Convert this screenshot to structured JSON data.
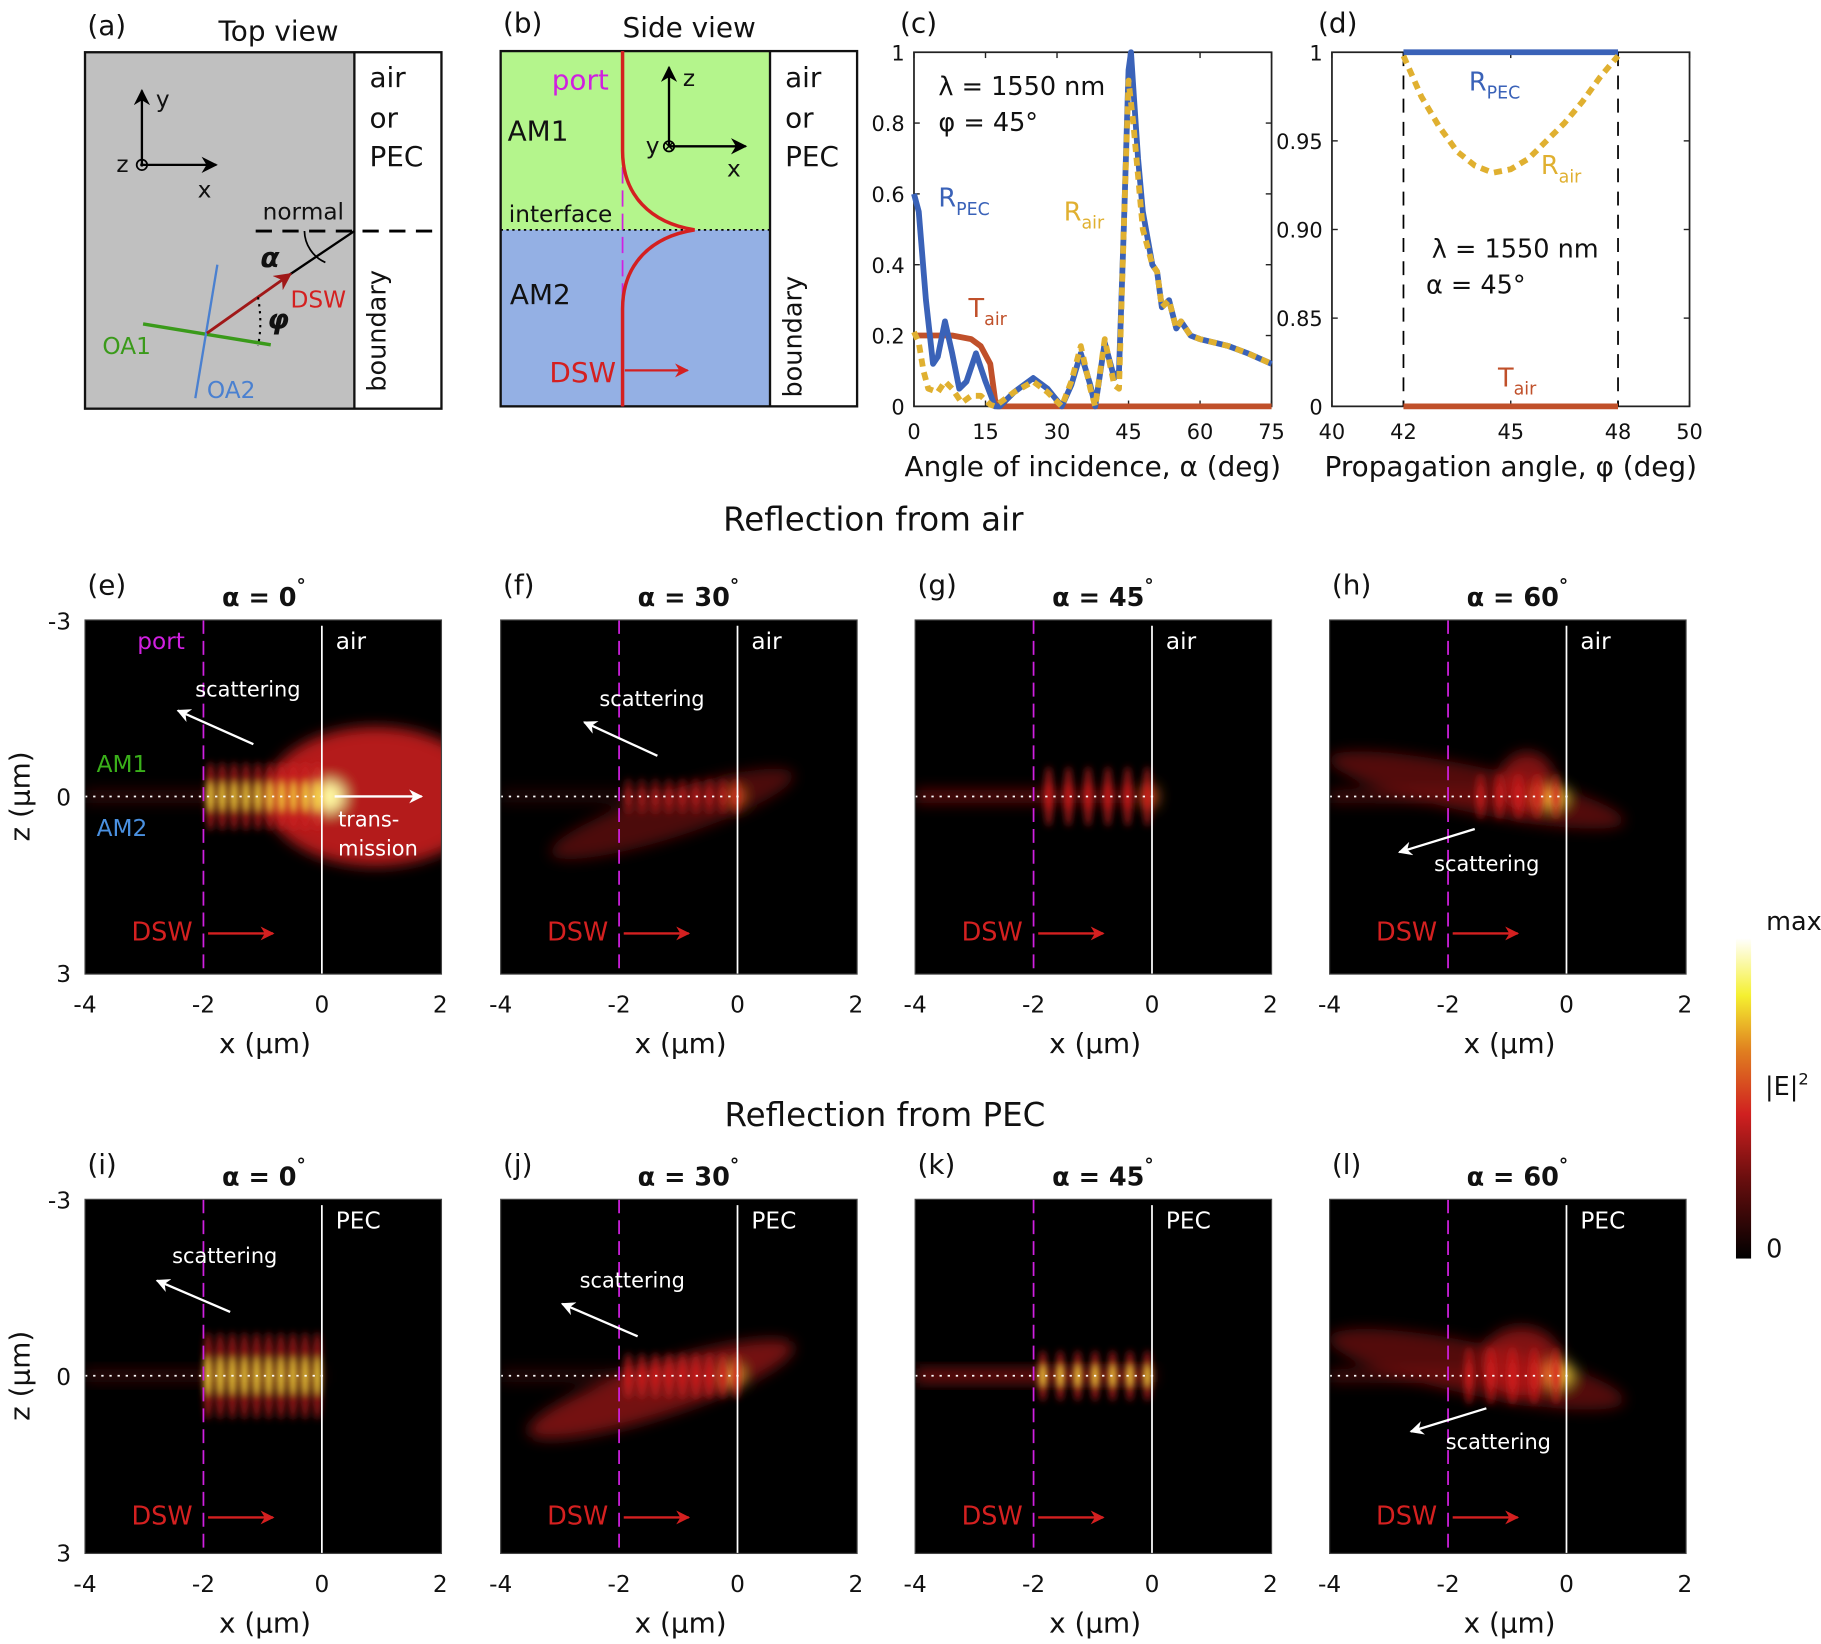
{
  "panel_a": {
    "label": "(a)",
    "title": "Top view",
    "side": [
      "air",
      "or",
      "PEC"
    ],
    "boundary": "boundary",
    "normal": "normal",
    "alpha": "α",
    "phi": "φ",
    "dsw": "DSW",
    "oa1": "OA1",
    "oa2": "OA2",
    "axes": {
      "y": "y",
      "z": "z",
      "x": "x"
    },
    "colors": {
      "substrate": "#c0c0c0",
      "dsw": "#a01818",
      "oa1": "#3a9a1a",
      "oa2": "#4a80d0"
    }
  },
  "panel_b": {
    "label": "(b)",
    "title": "Side view",
    "side": [
      "air",
      "or",
      "PEC"
    ],
    "boundary": "boundary",
    "port": "port",
    "am1": "AM1",
    "am2": "AM2",
    "interface": "interface",
    "dsw": "DSW",
    "axes": {
      "z": "z",
      "y": "y",
      "x": "x"
    },
    "colors": {
      "am1": "#b4f58c",
      "am2": "#94b0e4",
      "port": "#d020e0",
      "field": "#d42020"
    }
  },
  "chart_data": [
    {
      "panel": "(c)",
      "type": "line",
      "xlabel": "Angle of incidence, α (deg)",
      "ylabel": "",
      "xlim": [
        0,
        75
      ],
      "ylim": [
        0,
        1
      ],
      "x_ticks": [
        0,
        15,
        30,
        45,
        60,
        75
      ],
      "y_ticks": [
        0,
        0.2,
        0.4,
        0.6,
        0.8,
        1
      ],
      "y_tick_labels": [
        "0",
        "0.2",
        "0.4",
        "0.6",
        "0.8",
        "1"
      ],
      "annotations": [
        "λ = 1550 nm",
        "φ = 45°"
      ],
      "series": [
        {
          "name": "T",
          "sub": "air",
          "color": "#c0502a",
          "style": "solid",
          "x": [
            0,
            8,
            12,
            14,
            16,
            17,
            17.5,
            75
          ],
          "y": [
            0.2,
            0.2,
            0.19,
            0.17,
            0.12,
            0.02,
            0,
            0
          ]
        },
        {
          "name": "R",
          "sub": "PEC",
          "color": "#3a62b8",
          "style": "solid",
          "x": [
            0,
            1,
            2.5,
            4,
            5,
            6.5,
            8,
            9.5,
            11,
            13,
            15,
            17,
            18,
            21,
            25,
            28,
            31,
            33,
            35,
            37,
            38,
            40,
            42,
            43,
            44,
            45,
            45.5,
            46,
            47,
            48,
            50,
            51,
            52,
            53.5,
            55,
            56,
            58,
            60,
            63,
            66,
            70,
            75
          ],
          "y": [
            0.6,
            0.55,
            0.3,
            0.12,
            0.14,
            0.24,
            0.15,
            0.05,
            0.07,
            0.15,
            0.07,
            0.0,
            0.0,
            0.04,
            0.08,
            0.05,
            0.0,
            0.06,
            0.15,
            0.06,
            0.0,
            0.18,
            0.08,
            0.1,
            0.5,
            0.95,
            1.0,
            0.9,
            0.7,
            0.55,
            0.4,
            0.38,
            0.28,
            0.3,
            0.22,
            0.24,
            0.2,
            0.19,
            0.18,
            0.17,
            0.15,
            0.12
          ]
        },
        {
          "name": "R",
          "sub": "air",
          "color": "#e0b030",
          "style": "dotted",
          "x": [
            0,
            1,
            2,
            3,
            5,
            6.5,
            8,
            10,
            12,
            14,
            16,
            17,
            18,
            21,
            25,
            28,
            31,
            33,
            35,
            37,
            38,
            40,
            42,
            43,
            44,
            45,
            46,
            47,
            48,
            50,
            51,
            52,
            53.5,
            55,
            56,
            58,
            60,
            63,
            66,
            70,
            75
          ],
          "y": [
            0.21,
            0.18,
            0.1,
            0.05,
            0.04,
            0.07,
            0.05,
            0.01,
            0.03,
            0.03,
            0.005,
            0.0,
            0.01,
            0.04,
            0.07,
            0.04,
            0.0,
            0.07,
            0.17,
            0.05,
            0.0,
            0.19,
            0.06,
            0.05,
            0.5,
            0.92,
            0.8,
            0.65,
            0.5,
            0.4,
            0.38,
            0.28,
            0.3,
            0.22,
            0.24,
            0.2,
            0.19,
            0.18,
            0.17,
            0.15,
            0.12
          ]
        }
      ]
    },
    {
      "panel": "(d)",
      "type": "line",
      "xlabel": "Propagation angle, φ (deg)",
      "ylabel": "",
      "xlim": [
        40,
        50
      ],
      "ylim": [
        0,
        1
      ],
      "y_axis_break": [
        0,
        0.85
      ],
      "x_ticks": [
        40,
        42,
        45,
        48,
        50
      ],
      "y_ticks": [
        0,
        0.85,
        0.9,
        0.95,
        1
      ],
      "y_tick_labels": [
        "0",
        "0.85",
        "0.90",
        "0.95",
        "1"
      ],
      "vertical_markers": [
        42,
        48
      ],
      "annotations": [
        "λ = 1550 nm",
        "α = 45°"
      ],
      "series": [
        {
          "name": "R",
          "sub": "PEC",
          "color": "#3a62b8",
          "style": "solid",
          "x": [
            42,
            48
          ],
          "y": [
            1,
            1
          ]
        },
        {
          "name": "R",
          "sub": "air",
          "color": "#e0b030",
          "style": "dotted",
          "x": [
            42,
            42.5,
            43,
            43.5,
            44,
            44.5,
            45,
            45.5,
            46,
            46.5,
            47,
            47.5,
            48
          ],
          "y": [
            0.998,
            0.975,
            0.958,
            0.944,
            0.936,
            0.932,
            0.934,
            0.94,
            0.95,
            0.96,
            0.972,
            0.986,
            0.998
          ]
        },
        {
          "name": "T",
          "sub": "air",
          "color": "#c0502a",
          "style": "solid",
          "x": [
            42,
            48
          ],
          "y": [
            0,
            0
          ]
        }
      ]
    }
  ],
  "section_titles": {
    "air": "Reflection from air",
    "pec": "Reflection from PEC"
  },
  "field_maps": {
    "x_ticks": [
      "-4",
      "-2",
      "0",
      "2"
    ],
    "z_ticks": [
      "-3",
      "0",
      "3"
    ],
    "xlabel": "x (µm)",
    "ylabel": "z (µm)",
    "panels": [
      {
        "label": "(e)",
        "alpha": "α = 0",
        "degree": "°",
        "medium": "air",
        "port": "port",
        "am1": "AM1",
        "am2": "AM2",
        "scattering": "scattering",
        "transmission": [
          "trans-",
          "mission"
        ],
        "dsw": "DSW"
      },
      {
        "label": "(f)",
        "alpha": "α = 30",
        "degree": "°",
        "medium": "air",
        "scattering": "scattering",
        "dsw": "DSW"
      },
      {
        "label": "(g)",
        "alpha": "α = 45",
        "degree": "°",
        "medium": "air",
        "dsw": "DSW"
      },
      {
        "label": "(h)",
        "alpha": "α = 60",
        "degree": "°",
        "medium": "air",
        "scattering": "scattering",
        "dsw": "DSW"
      },
      {
        "label": "(i)",
        "alpha": "α = 0",
        "degree": "°",
        "medium": "PEC",
        "scattering": "scattering",
        "dsw": "DSW"
      },
      {
        "label": "(j)",
        "alpha": "α = 30",
        "degree": "°",
        "medium": "PEC",
        "scattering": "scattering",
        "dsw": "DSW"
      },
      {
        "label": "(k)",
        "alpha": "α = 45",
        "degree": "°",
        "medium": "PEC",
        "dsw": "DSW"
      },
      {
        "label": "(l)",
        "alpha": "α = 60",
        "degree": "°",
        "medium": "PEC",
        "scattering": "scattering",
        "dsw": "DSW"
      }
    ]
  },
  "colorbar": {
    "max": "max",
    "label": "|E|",
    "exponent": "2",
    "min": "0",
    "colors": [
      "#000000",
      "#6a0e0e",
      "#d02020",
      "#e08020",
      "#f5f030",
      "#ffffff"
    ]
  }
}
